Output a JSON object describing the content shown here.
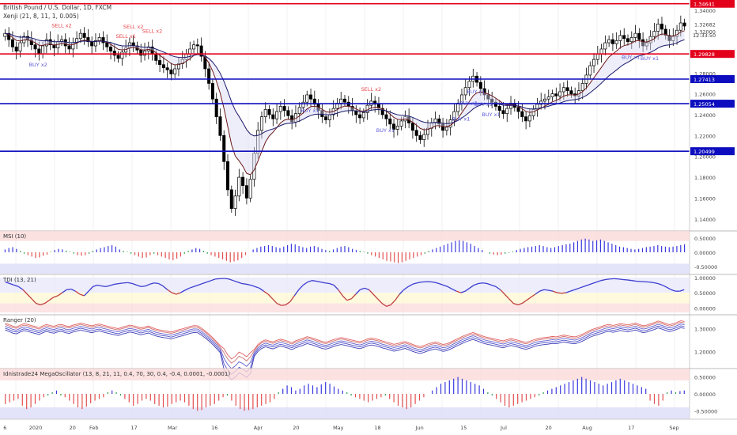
{
  "header": {
    "symbol": "British Pound / U.S. Dollar, 1D, FXCM",
    "indicator": "Xenji (21, 8, 11, 1, 0.005)"
  },
  "colors": {
    "up_candle": "#ffffff",
    "down_candle": "#000000",
    "red_level": "#e3001b",
    "blue_level": "#0d0dbf",
    "sell_text": "#e8454c",
    "buy_text": "#5b5bd6",
    "osc_blue": "#3a3adf",
    "osc_red": "#e34f4f",
    "osc_green": "#2e9e4e"
  },
  "price_axis": {
    "ticks": [
      "1.34000",
      "1.32682",
      "1.32000",
      "1.30000",
      "1.28000",
      "1.26000",
      "1.24000",
      "1.22000",
      "1.20000",
      "1.18000",
      "1.16000",
      "1.14000"
    ],
    "current_time": "12:33:50"
  },
  "levels": [
    {
      "value": "1.34641",
      "color": "red"
    },
    {
      "value": "1.29828",
      "color": "red"
    },
    {
      "value": "1.27413",
      "color": "blue"
    },
    {
      "value": "1.25054",
      "color": "blue"
    },
    {
      "value": "1.20499",
      "color": "blue"
    }
  ],
  "signals": [
    {
      "text": "SELL x2",
      "type": "sell"
    },
    {
      "text": "SELL x1",
      "type": "sell"
    },
    {
      "text": "SELL x2",
      "type": "sell"
    },
    {
      "text": "SELL x2",
      "type": "sell"
    },
    {
      "text": "BUY x2",
      "type": "buy"
    },
    {
      "text": "BUY x1",
      "type": "buy"
    },
    {
      "text": "BUY x1",
      "type": "buy"
    },
    {
      "text": "BUY x1",
      "type": "buy"
    },
    {
      "text": "BUY x1",
      "type": "buy"
    },
    {
      "text": "BUY x1",
      "type": "buy"
    },
    {
      "text": "BUY x1",
      "type": "buy"
    },
    {
      "text": "SELL x2",
      "type": "sell"
    },
    {
      "text": "BUY x1",
      "type": "buy"
    },
    {
      "text": "BUY x1",
      "type": "buy"
    },
    {
      "text": "BUY x1",
      "type": "buy"
    }
  ],
  "panels": [
    {
      "title": "MSI (10)",
      "ticks": [
        "0.50000",
        "0.00000",
        "-0.50000"
      ]
    },
    {
      "title": "TDI (13, 21)",
      "ticks": [
        "1.00000",
        "0.50000",
        "0.00000"
      ]
    },
    {
      "title": "Ranger (20)",
      "ticks": [
        "1.30000",
        "1.20000"
      ]
    },
    {
      "title": "Idnistrade24 MegaOscillator (13, 8, 21, 11, 0.4, 70, 30, 0.4, -0.4, 0.0001, -0.0001)",
      "ticks": [
        "0.50000",
        "0.00000",
        "-0.50000"
      ]
    }
  ],
  "time_axis": [
    "6",
    "2020",
    "20",
    "Feb",
    "17",
    "Mar",
    "16",
    "Apr",
    "20",
    "May",
    "18",
    "Jun",
    "15",
    "Jul",
    "20",
    "Aug",
    "17",
    "Sep"
  ],
  "chart_data": {
    "type": "candlestick",
    "ylim": [
      1.13,
      1.35
    ],
    "levels": [
      1.34641,
      1.29828,
      1.27413,
      1.25054,
      1.20499
    ],
    "close": [
      1.318,
      1.312,
      1.305,
      1.301,
      1.309,
      1.315,
      1.312,
      1.307,
      1.303,
      1.298,
      1.306,
      1.312,
      1.307,
      1.304,
      1.31,
      1.312,
      1.306,
      1.303,
      1.309,
      1.313,
      1.318,
      1.314,
      1.31,
      1.306,
      1.311,
      1.314,
      1.309,
      1.305,
      1.301,
      1.297,
      1.294,
      1.3,
      1.304,
      1.309,
      1.306,
      1.302,
      1.297,
      1.301,
      1.305,
      1.298,
      1.292,
      1.288,
      1.285,
      1.283,
      1.279,
      1.284,
      1.289,
      1.293,
      1.298,
      1.303,
      1.307,
      1.306,
      1.296,
      1.284,
      1.27,
      1.255,
      1.238,
      1.22,
      1.195,
      1.168,
      1.15,
      1.162,
      1.18,
      1.172,
      1.16,
      1.178,
      1.203,
      1.225,
      1.238,
      1.245,
      1.24,
      1.236,
      1.243,
      1.248,
      1.244,
      1.239,
      1.233,
      1.241,
      1.247,
      1.252,
      1.259,
      1.255,
      1.25,
      1.244,
      1.238,
      1.235,
      1.24,
      1.246,
      1.251,
      1.255,
      1.252,
      1.248,
      1.244,
      1.24,
      1.237,
      1.242,
      1.249,
      1.253,
      1.25,
      1.246,
      1.24,
      1.236,
      1.231,
      1.226,
      1.229,
      1.234,
      1.238,
      1.232,
      1.225,
      1.22,
      1.216,
      1.221,
      1.227,
      1.232,
      1.236,
      1.231,
      1.225,
      1.228,
      1.235,
      1.243,
      1.251,
      1.259,
      1.266,
      1.272,
      1.277,
      1.271,
      1.265,
      1.259,
      1.255,
      1.252,
      1.248,
      1.244,
      1.241,
      1.246,
      1.251,
      1.247,
      1.243,
      1.238,
      1.234,
      1.239,
      1.245,
      1.25,
      1.253,
      1.255,
      1.257,
      1.26,
      1.258,
      1.262,
      1.266,
      1.263,
      1.26,
      1.258,
      1.263,
      1.27,
      1.278,
      1.287,
      1.293,
      1.298,
      1.303,
      1.309,
      1.312,
      1.308,
      1.311,
      1.316,
      1.313,
      1.31,
      1.314,
      1.318,
      1.312,
      1.306,
      1.309,
      1.315,
      1.32,
      1.327,
      1.322,
      1.316,
      1.311,
      1.315,
      1.321,
      1.328,
      1.325
    ],
    "msi": [
      0.1,
      0.15,
      0.18,
      0.12,
      0.05,
      -0.05,
      -0.1,
      -0.15,
      -0.2,
      -0.18,
      -0.12,
      -0.08,
      0.02,
      0.08,
      0.12,
      0.1,
      0.06,
      0.02,
      -0.05,
      -0.1,
      -0.12,
      -0.1,
      -0.05,
      0.05,
      0.1,
      0.15,
      0.18,
      0.22,
      0.25,
      0.2,
      0.1,
      0.05,
      0.02,
      -0.05,
      -0.1,
      -0.15,
      -0.2,
      -0.18,
      -0.1,
      -0.05,
      -0.1,
      -0.15,
      -0.2,
      -0.25,
      -0.28,
      -0.22,
      -0.15,
      -0.05,
      0.05,
      0.1,
      0.15,
      0.12,
      0.05,
      -0.05,
      -0.1,
      -0.15,
      -0.2,
      -0.25,
      -0.3,
      -0.35,
      -0.32,
      -0.28,
      -0.2,
      -0.1,
      0.0,
      0.1,
      0.15,
      0.2,
      0.22,
      0.25,
      0.22,
      0.18,
      0.15,
      0.2,
      0.25,
      0.3,
      0.28,
      0.22,
      0.18,
      0.15,
      0.2,
      0.22,
      0.18,
      0.12,
      0.08,
      0.05,
      0.1,
      0.15,
      0.2,
      0.22,
      0.18,
      0.12,
      0.08,
      0.05,
      0.02,
      -0.05,
      -0.1,
      -0.15,
      -0.2,
      -0.25,
      -0.3,
      -0.32,
      -0.35,
      -0.38,
      -0.35,
      -0.3,
      -0.25,
      -0.2,
      -0.15,
      -0.1,
      -0.05,
      0.05,
      0.1,
      0.15,
      0.2,
      0.25,
      0.3,
      0.35,
      0.4,
      0.42,
      0.4,
      0.35,
      0.3,
      0.22,
      0.15,
      0.08,
      0.0,
      -0.05,
      -0.08,
      -0.1,
      -0.08,
      -0.05,
      -0.02,
      0.03,
      0.08,
      0.12,
      0.15,
      0.18,
      0.2,
      0.22,
      0.25,
      0.22,
      0.18,
      0.15,
      0.18,
      0.22,
      0.25,
      0.28,
      0.3,
      0.35,
      0.4,
      0.45,
      0.48,
      0.45,
      0.4,
      0.42,
      0.45,
      0.4,
      0.35,
      0.3,
      0.25,
      0.2,
      0.18,
      0.15,
      0.12,
      0.1,
      0.12,
      0.15,
      0.18,
      0.2,
      0.22,
      0.25,
      0.22,
      0.2,
      0.18,
      0.2,
      0.22,
      0.25,
      0.28
    ],
    "tdi": [
      0.85,
      0.8,
      0.75,
      0.7,
      0.6,
      0.45,
      0.3,
      0.15,
      0.1,
      0.15,
      0.25,
      0.35,
      0.4,
      0.5,
      0.6,
      0.62,
      0.55,
      0.45,
      0.4,
      0.55,
      0.7,
      0.75,
      0.72,
      0.7,
      0.74,
      0.78,
      0.8,
      0.82,
      0.83,
      0.8,
      0.75,
      0.7,
      0.72,
      0.78,
      0.82,
      0.8,
      0.72,
      0.6,
      0.5,
      0.45,
      0.5,
      0.58,
      0.65,
      0.7,
      0.75,
      0.8,
      0.85,
      0.9,
      0.95,
      0.96,
      0.97,
      0.95,
      0.9,
      0.85,
      0.8,
      0.78,
      0.75,
      0.7,
      0.65,
      0.55,
      0.45,
      0.3,
      0.15,
      0.08,
      0.1,
      0.2,
      0.4,
      0.6,
      0.75,
      0.85,
      0.9,
      0.88,
      0.85,
      0.82,
      0.8,
      0.75,
      0.6,
      0.4,
      0.25,
      0.3,
      0.45,
      0.6,
      0.65,
      0.6,
      0.45,
      0.3,
      0.15,
      0.05,
      0.1,
      0.25,
      0.45,
      0.6,
      0.7,
      0.78,
      0.82,
      0.85,
      0.86,
      0.86,
      0.84,
      0.8,
      0.75,
      0.7,
      0.62,
      0.55,
      0.5,
      0.55,
      0.65,
      0.75,
      0.8,
      0.82,
      0.8,
      0.75,
      0.7,
      0.6,
      0.45,
      0.3,
      0.15,
      0.1,
      0.15,
      0.25,
      0.35,
      0.45,
      0.55,
      0.6,
      0.58,
      0.55,
      0.5,
      0.48,
      0.5,
      0.55,
      0.6,
      0.65,
      0.7,
      0.75,
      0.8,
      0.85,
      0.9,
      0.93,
      0.95,
      0.96,
      0.95,
      0.93,
      0.92,
      0.9,
      0.88,
      0.87,
      0.86,
      0.85,
      0.83,
      0.8,
      0.75,
      0.68,
      0.6,
      0.55,
      0.55,
      0.6
    ],
    "oscillator": [
      -0.3,
      -0.25,
      -0.2,
      -0.15,
      -0.35,
      -0.45,
      -0.4,
      -0.3,
      -0.2,
      -0.1,
      -0.05,
      0.05,
      0.1,
      -0.05,
      -0.1,
      -0.2,
      -0.3,
      -0.4,
      -0.45,
      -0.38,
      -0.28,
      -0.2,
      -0.15,
      -0.1,
      0.05,
      0.1,
      0.05,
      -0.05,
      -0.15,
      -0.25,
      -0.35,
      -0.3,
      -0.2,
      -0.15,
      -0.2,
      -0.3,
      -0.35,
      -0.4,
      -0.38,
      -0.3,
      -0.25,
      -0.2,
      -0.25,
      -0.35,
      -0.45,
      -0.5,
      -0.48,
      -0.4,
      -0.35,
      -0.3,
      -0.2,
      -0.1,
      -0.05,
      -0.2,
      -0.35,
      -0.45,
      -0.5,
      -0.48,
      -0.45,
      -0.4,
      -0.35,
      -0.3,
      -0.25,
      -0.15,
      0.05,
      0.15,
      0.25,
      0.2,
      0.1,
      0.15,
      0.25,
      0.3,
      0.25,
      0.2,
      0.28,
      0.35,
      0.3,
      0.22,
      0.15,
      0.1,
      0.05,
      -0.05,
      -0.1,
      -0.15,
      -0.2,
      -0.25,
      -0.2,
      -0.15,
      -0.1,
      -0.05,
      -0.15,
      -0.25,
      -0.35,
      -0.4,
      -0.45,
      -0.4,
      -0.3,
      -0.2,
      -0.1,
      0.0,
      0.1,
      0.2,
      0.3,
      0.35,
      0.4,
      0.45,
      0.5,
      0.45,
      0.4,
      0.35,
      0.3,
      0.25,
      0.15,
      0.05,
      -0.05,
      -0.15,
      -0.25,
      -0.35,
      -0.4,
      -0.35,
      -0.3,
      -0.25,
      -0.2,
      -0.15,
      -0.1,
      -0.05,
      0.05,
      0.1,
      0.15,
      0.2,
      0.25,
      0.3,
      0.35,
      0.4,
      0.45,
      0.5,
      0.45,
      0.4,
      0.35,
      0.3,
      0.25,
      0.3,
      0.35,
      0.4,
      0.45,
      0.4,
      0.35,
      0.3,
      0.25,
      0.2,
      0.15,
      -0.2,
      -0.3,
      -0.35,
      -0.2,
      0.05,
      0.1,
      0.05,
      0.08,
      0.1
    ]
  }
}
